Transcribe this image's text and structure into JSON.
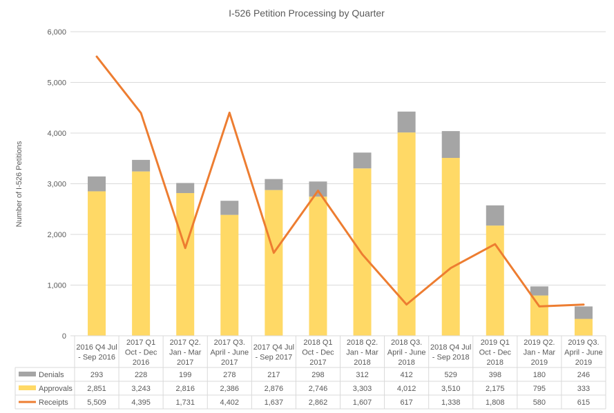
{
  "chart_data": {
    "type": "bar",
    "stacked": true,
    "title": "I-526 Petition Processing by Quarter",
    "xlabel": "",
    "ylabel": "Number of I-526 Petitions",
    "ylim": [
      0,
      6000
    ],
    "yticks": [
      0,
      1000,
      2000,
      3000,
      4000,
      5000,
      6000
    ],
    "ytick_labels": [
      "0",
      "1,000",
      "2,000",
      "3,000",
      "4,000",
      "5,000",
      "6,000"
    ],
    "grid": true,
    "legend": "data-table-bottom",
    "categories": [
      [
        "2016 Q4 Jul",
        "- Sep 2016"
      ],
      [
        "2017 Q1",
        "Oct - Dec",
        "2016"
      ],
      [
        "2017 Q2.",
        "Jan - Mar",
        "2017"
      ],
      [
        "2017 Q3.",
        "April - June",
        "2017"
      ],
      [
        "2017 Q4 Jul",
        "- Sep 2017"
      ],
      [
        "2018 Q1",
        "Oct - Dec",
        "2017"
      ],
      [
        "2018 Q2.",
        "Jan - Mar",
        "2018"
      ],
      [
        "2018 Q3.",
        "April - June",
        "2018"
      ],
      [
        "2018 Q4 Jul",
        "- Sep 2018"
      ],
      [
        "2019  Q1",
        "Oct - Dec",
        "2018"
      ],
      [
        "2019 Q2.",
        "Jan - Mar",
        "2019"
      ],
      [
        "2019 Q3.",
        "April - June",
        "2019"
      ]
    ],
    "series": [
      {
        "name": "Denials",
        "type": "bar",
        "color": "#a5a5a5",
        "values": [
          293,
          228,
          199,
          278,
          217,
          298,
          312,
          412,
          529,
          398,
          180,
          246
        ],
        "labels": [
          "293",
          "228",
          "199",
          "278",
          "217",
          "298",
          "312",
          "412",
          "529",
          "398",
          "180",
          "246"
        ]
      },
      {
        "name": "Approvals",
        "type": "bar",
        "color": "#ffd966",
        "values": [
          2851,
          3243,
          2816,
          2386,
          2876,
          2746,
          3303,
          4012,
          3510,
          2175,
          795,
          333
        ],
        "labels": [
          "2,851",
          "3,243",
          "2,816",
          "2,386",
          "2,876",
          "2,746",
          "3,303",
          "4,012",
          "3,510",
          "2,175",
          "795",
          "333"
        ]
      },
      {
        "name": "Receipts",
        "type": "line",
        "color": "#ed7d31",
        "values": [
          5509,
          4395,
          1731,
          4402,
          1637,
          2862,
          1607,
          617,
          1338,
          1808,
          580,
          615
        ],
        "labels": [
          "5,509",
          "4,395",
          "1,731",
          "4,402",
          "1,637",
          "2,862",
          "1,607",
          "617",
          "1,338",
          "1,808",
          "580",
          "615"
        ]
      }
    ]
  }
}
